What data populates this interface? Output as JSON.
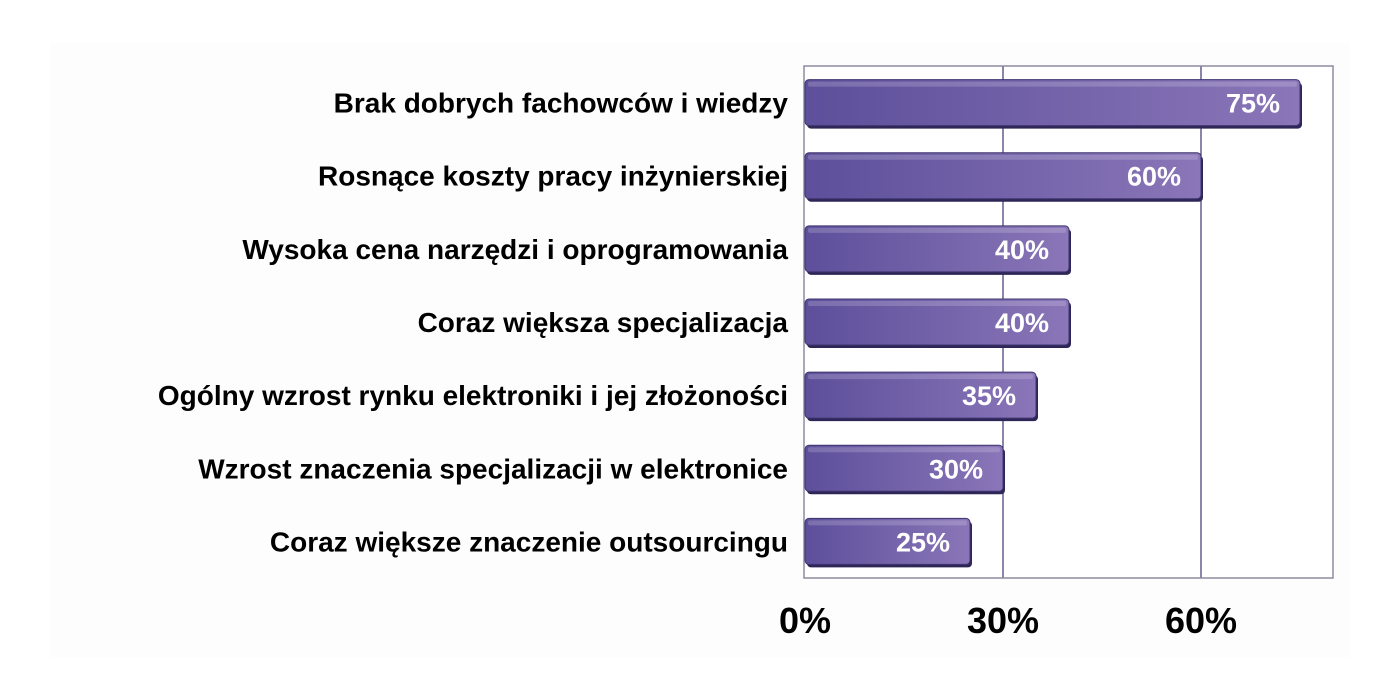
{
  "chart_data": {
    "type": "bar",
    "orientation": "horizontal",
    "categories": [
      "Brak dobrych fachowców i wiedzy",
      "Rosnące koszty pracy inżynierskiej",
      "Wysoka cena narzędzi i oprogramowania",
      "Coraz większa specjalizacja",
      "Ogólny wzrost rynku elektroniki i jej złożoności",
      "Wzrost znaczenia specjalizacji w elektronice",
      "Coraz większe znaczenie outsourcingu"
    ],
    "values": [
      75,
      60,
      40,
      40,
      35,
      30,
      25
    ],
    "data_labels": [
      "75%",
      "60%",
      "40%",
      "40%",
      "35%",
      "30%",
      "25%"
    ],
    "xlim": [
      0,
      80
    ],
    "x_ticks": [
      0,
      30,
      60
    ],
    "x_tick_labels": [
      "0%",
      "30%",
      "60%"
    ],
    "grid": true,
    "legend": "none",
    "bar_color": "#5d4f9b",
    "bar_highlight_color": "#8a76b8",
    "bar_shadow_color": "#2e2656",
    "gridline_color": "#3c3572",
    "plot_border_color": "#8c8ca0"
  }
}
